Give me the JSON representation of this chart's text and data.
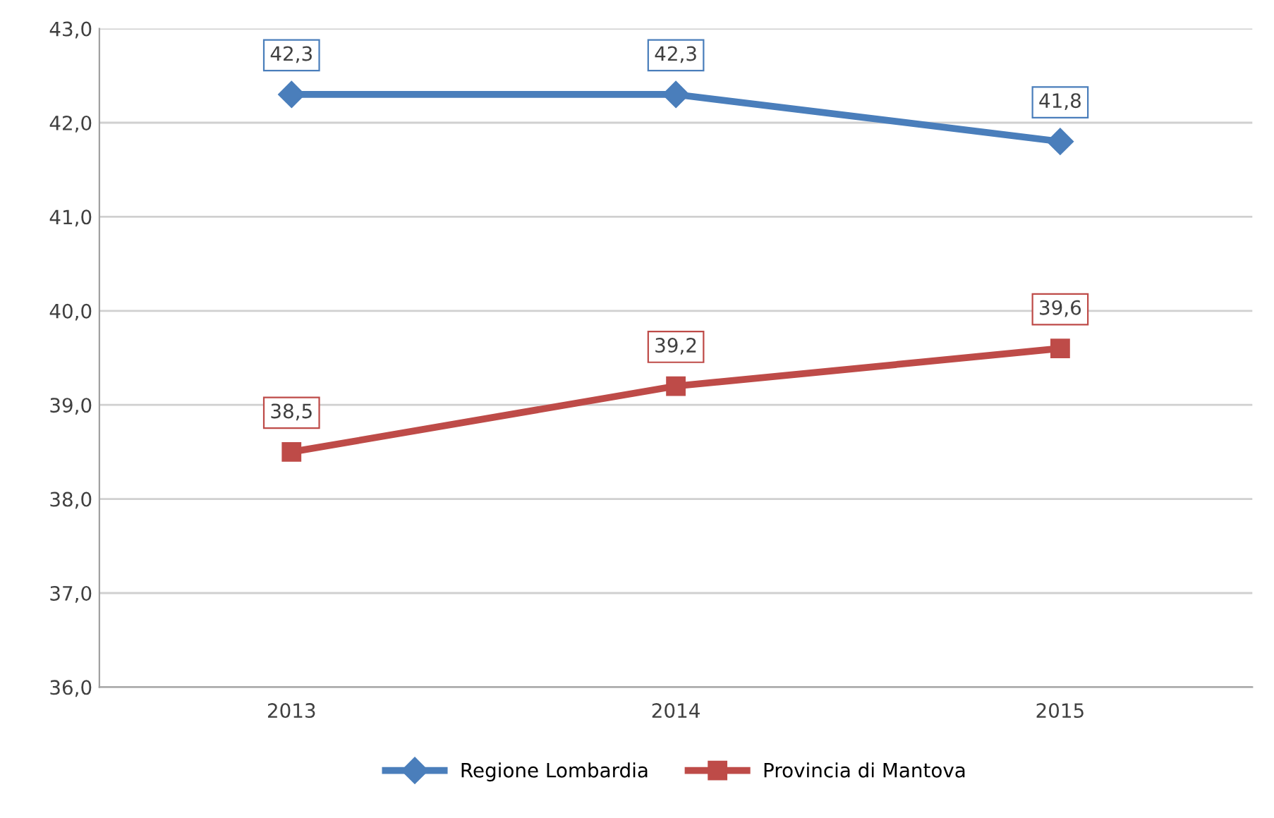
{
  "chart_data": {
    "type": "line",
    "categories": [
      "2013",
      "2014",
      "2015"
    ],
    "series": [
      {
        "name": "Regione Lombardia",
        "color": "#4a7ebb",
        "marker": "diamond",
        "values": [
          42.3,
          42.3,
          41.8
        ],
        "value_labels": [
          "42,3",
          "42,3",
          "41,8"
        ]
      },
      {
        "name": "Provincia di Mantova",
        "color": "#be4b48",
        "marker": "square",
        "values": [
          38.5,
          39.2,
          39.6
        ],
        "value_labels": [
          "38,5",
          "39,2",
          "39,6"
        ]
      }
    ],
    "ylim": [
      36,
      43
    ],
    "yticks": [
      {
        "value": 36,
        "label": "36,0"
      },
      {
        "value": 37,
        "label": "37,0"
      },
      {
        "value": 38,
        "label": "38,0"
      },
      {
        "value": 39,
        "label": "39,0"
      },
      {
        "value": 40,
        "label": "40,0"
      },
      {
        "value": 41,
        "label": "41,0"
      },
      {
        "value": 42,
        "label": "42,0"
      },
      {
        "value": 43,
        "label": "43,0"
      }
    ],
    "grid": "y",
    "legend": "bottom",
    "line_style": "solid"
  }
}
